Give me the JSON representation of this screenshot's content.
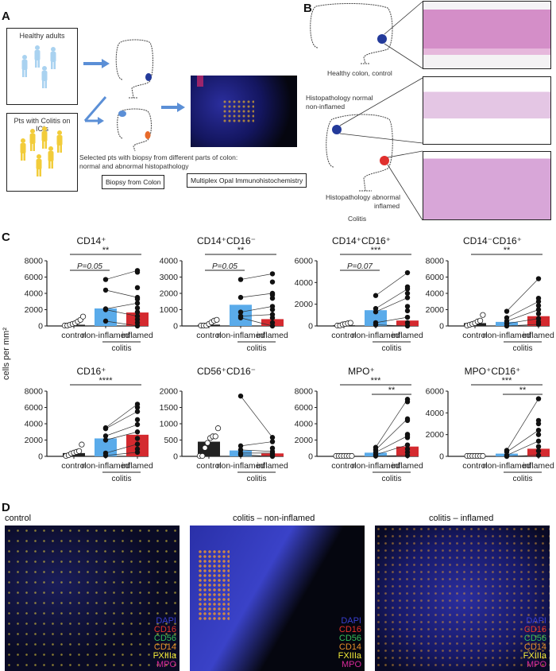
{
  "panels": {
    "A": {
      "letter": "A",
      "healthy_box_label": "Healthy adults",
      "colitis_box_label": "Pts with Colitis on ICIs",
      "selection_caption_line1": "Selected pts with biopsy from different parts of colon:",
      "selection_caption_line2": "normal and abnormal histopathology",
      "biopsy_label": "Biopsy from Colon",
      "ihc_label": "Multiplex Opal Immunohistochemistry"
    },
    "B": {
      "letter": "B",
      "healthy_label": "Healthy colon, control",
      "normal_label_line1": "Histopathology normal",
      "normal_label_line2": "non-inflamed",
      "abnormal_label_line1": "Histopathology abnormal",
      "abnormal_label_line2": "inflamed",
      "colitis_label": "Colitis"
    },
    "C": {
      "letter": "C",
      "ylabel": "cells per mm²",
      "xgroup_label": "colitis",
      "categories": [
        "control",
        "non-inflamed",
        "inflamed"
      ]
    },
    "D": {
      "letter": "D",
      "titles": [
        "control",
        "colitis – non-inflamed",
        "colitis – inflamed"
      ],
      "legend": [
        {
          "label": "DAPI",
          "color": "#3a3fd0"
        },
        {
          "label": "CD16",
          "color": "#e8322a"
        },
        {
          "label": "CD56",
          "color": "#36c05a"
        },
        {
          "label": "CD14",
          "color": "#e8902a"
        },
        {
          "label": "FXIIIa",
          "color": "#f4ee3a"
        },
        {
          "label": "MPO",
          "color": "#d92a9a"
        }
      ]
    }
  },
  "colors": {
    "control_bar": "#222222",
    "noninflamed_bar": "#5aabea",
    "inflamed_bar": "#d42a2f",
    "arrow": "#5b8fd6",
    "healthy_figure": "#a9d2f0",
    "colitis_figure": "#f2cc3a",
    "healthy_spot": "#233a9a",
    "inflamed_spot": "#e0302e"
  },
  "chart_data": [
    {
      "type": "bar",
      "title": "CD14⁺",
      "categories": [
        "control",
        "non-inflamed",
        "inflamed"
      ],
      "values": [
        150,
        2150,
        1650
      ],
      "ylim": [
        0,
        8000
      ],
      "yticks": [
        0,
        2000,
        4000,
        6000,
        8000
      ],
      "ylabel": "cells per mm²",
      "points": {
        "control": [
          0,
          0,
          100,
          200,
          300,
          500,
          700,
          1100
        ],
        "non-inflamed": [
          600,
          2000,
          2100,
          4400,
          5700
        ],
        "inflamed": [
          0,
          400,
          800,
          1200,
          1700,
          2200,
          2800,
          3300,
          3500,
          4700,
          6600,
          6800
        ]
      },
      "annotations": [
        {
          "pair": [
            "control",
            "inflamed"
          ],
          "text": "**"
        },
        {
          "pair": [
            "control",
            "non-inflamed"
          ],
          "text": "P=0.05"
        }
      ]
    },
    {
      "type": "bar",
      "title": "CD14⁺CD16⁻",
      "categories": [
        "control",
        "non-inflamed",
        "inflamed"
      ],
      "values": [
        80,
        1300,
        420
      ],
      "ylim": [
        0,
        4000
      ],
      "yticks": [
        0,
        1000,
        2000,
        3000,
        4000
      ],
      "points": {
        "control": [
          0,
          0,
          0,
          100,
          200,
          300,
          350
        ],
        "non-inflamed": [
          500,
          600,
          850,
          1750,
          2850
        ],
        "inflamed": [
          0,
          200,
          500,
          700,
          1000,
          1200,
          1700,
          1900,
          2000,
          2700,
          3200
        ]
      },
      "annotations": [
        {
          "pair": [
            "control",
            "inflamed"
          ],
          "text": "**"
        },
        {
          "pair": [
            "control",
            "non-inflamed"
          ],
          "text": "P=0.05"
        }
      ]
    },
    {
      "type": "bar",
      "title": "CD14⁺CD16⁺",
      "categories": [
        "control",
        "non-inflamed",
        "inflamed"
      ],
      "values": [
        60,
        1450,
        500
      ],
      "ylim": [
        0,
        6000
      ],
      "yticks": [
        0,
        2000,
        4000,
        6000
      ],
      "points": {
        "control": [
          0,
          0,
          100,
          150,
          200,
          250
        ],
        "non-inflamed": [
          100,
          300,
          1300,
          1600,
          2800
        ],
        "inflamed": [
          0,
          300,
          800,
          1400,
          1800,
          2600,
          3000,
          3400,
          3600,
          4900
        ]
      },
      "annotations": [
        {
          "pair": [
            "control",
            "inflamed"
          ],
          "text": "***"
        },
        {
          "pair": [
            "control",
            "non-inflamed"
          ],
          "text": "P=0.07"
        }
      ]
    },
    {
      "type": "bar",
      "title": "CD14⁻CD16⁺",
      "categories": [
        "control",
        "non-inflamed",
        "inflamed"
      ],
      "values": [
        350,
        500,
        1200
      ],
      "ylim": [
        0,
        8000
      ],
      "yticks": [
        0,
        2000,
        4000,
        6000,
        8000
      ],
      "points": {
        "control": [
          0,
          100,
          200,
          300,
          500,
          600,
          1300
        ],
        "non-inflamed": [
          0,
          300,
          600,
          1000,
          1800
        ],
        "inflamed": [
          200,
          500,
          900,
          1500,
          2000,
          2500,
          3000,
          3400,
          5800
        ]
      },
      "annotations": [
        {
          "pair": [
            "control",
            "inflamed"
          ],
          "text": "**"
        }
      ]
    },
    {
      "type": "bar",
      "title": "CD16⁺",
      "categories": [
        "control",
        "non-inflamed",
        "inflamed"
      ],
      "values": [
        400,
        2200,
        2650
      ],
      "ylim": [
        0,
        8000
      ],
      "yticks": [
        0,
        2000,
        4000,
        6000,
        8000
      ],
      "points": {
        "control": [
          0,
          100,
          300,
          400,
          500,
          600,
          1400
        ],
        "non-inflamed": [
          100,
          400,
          2000,
          2500,
          3400,
          3500
        ],
        "inflamed": [
          500,
          900,
          1500,
          2200,
          3000,
          3900,
          4500,
          5500,
          6000,
          6400
        ]
      },
      "annotations": [
        {
          "pair": [
            "control",
            "inflamed"
          ],
          "text": "****"
        }
      ]
    },
    {
      "type": "bar",
      "title": "CD56⁺CD16⁻",
      "categories": [
        "control",
        "non-inflamed",
        "inflamed"
      ],
      "values": [
        450,
        180,
        90
      ],
      "ylim": [
        0,
        2000
      ],
      "yticks": [
        0,
        500,
        1000,
        1500,
        2000
      ],
      "points": {
        "control": [
          0,
          0,
          250,
          400,
          550,
          600,
          600,
          850
        ],
        "non-inflamed": [
          50,
          100,
          200,
          320,
          1850
        ],
        "inflamed": [
          0,
          50,
          100,
          150,
          250,
          450,
          580
        ]
      },
      "annotations": []
    },
    {
      "type": "bar",
      "title": "MPO⁺",
      "categories": [
        "control",
        "non-inflamed",
        "inflamed"
      ],
      "values": [
        0,
        450,
        1200
      ],
      "ylim": [
        0,
        8000
      ],
      "yticks": [
        0,
        2000,
        4000,
        6000,
        8000
      ],
      "points": {
        "control": [
          0,
          0,
          0,
          0,
          0,
          0,
          0
        ],
        "non-inflamed": [
          50,
          200,
          500,
          800,
          1100
        ],
        "inflamed": [
          100,
          500,
          900,
          1400,
          2300,
          2500,
          2700,
          4400,
          4600,
          6700,
          7000
        ]
      },
      "annotations": [
        {
          "pair": [
            "control",
            "inflamed"
          ],
          "text": "***"
        },
        {
          "pair": [
            "non-inflamed",
            "inflamed"
          ],
          "text": "**"
        }
      ]
    },
    {
      "type": "bar",
      "title": "MPO⁺CD16⁺",
      "categories": [
        "control",
        "non-inflamed",
        "inflamed"
      ],
      "values": [
        0,
        250,
        700
      ],
      "ylim": [
        0,
        6000
      ],
      "yticks": [
        0,
        2000,
        4000,
        6000
      ],
      "points": {
        "control": [
          0,
          0,
          0,
          0,
          0,
          0,
          0
        ],
        "non-inflamed": [
          0,
          100,
          400,
          550
        ],
        "inflamed": [
          100,
          500,
          900,
          1400,
          2000,
          2400,
          3000,
          3300,
          5300
        ]
      },
      "annotations": [
        {
          "pair": [
            "control",
            "inflamed"
          ],
          "text": "***"
        },
        {
          "pair": [
            "non-inflamed",
            "inflamed"
          ],
          "text": "**"
        }
      ]
    }
  ]
}
